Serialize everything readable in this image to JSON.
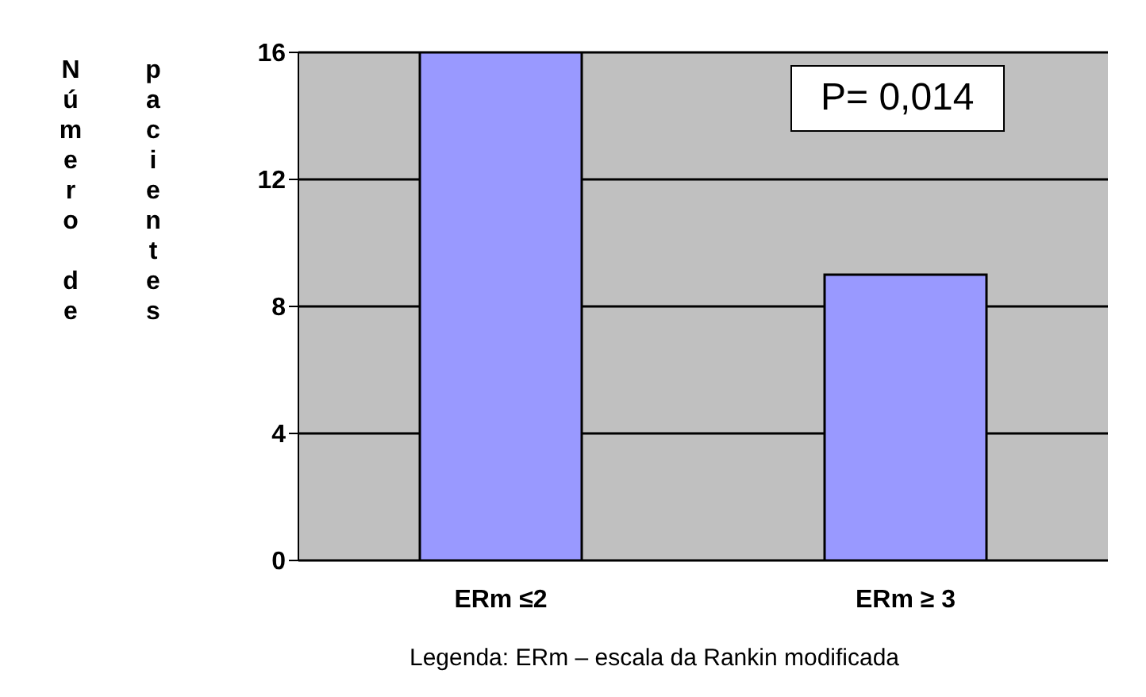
{
  "chart_data": {
    "type": "bar",
    "categories": [
      "ERm ≤2",
      "ERm ≥ 3"
    ],
    "values": [
      16,
      9
    ],
    "color": "#9999ff",
    "ylim": [
      0,
      16
    ],
    "yticks": [
      0,
      4,
      8,
      12,
      16
    ],
    "grid": "y",
    "ylabel": "Número de pacientes",
    "annotations": [
      {
        "text": "P= 0,014"
      },
      {
        "text": "Legenda: ERm – escala da Rankin modificada"
      }
    ]
  }
}
